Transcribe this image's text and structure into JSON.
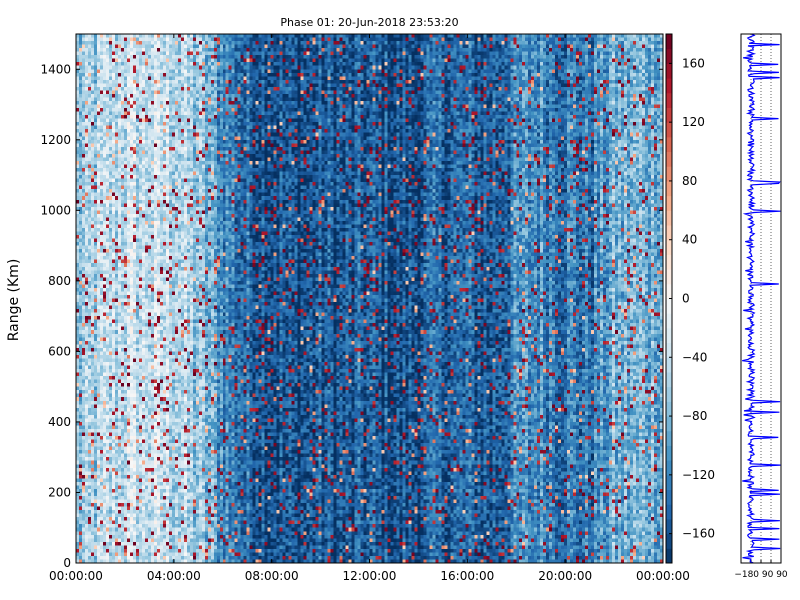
{
  "chart_data": {
    "type": "heatmap",
    "title": "Phase 01: 20-Jun-2018 23:53:20",
    "ylabel": "Range (Km)",
    "xlabel": "",
    "x_tick_labels": [
      "00:00:00",
      "04:00:00",
      "08:00:00",
      "12:00:00",
      "16:00:00",
      "20:00:00",
      "00:00:00"
    ],
    "x_range_hours": [
      0,
      24
    ],
    "y_ticks": [
      0,
      200,
      400,
      600,
      800,
      1000,
      1200,
      1400
    ],
    "ylim": [
      0,
      1500
    ],
    "colorbar": {
      "label": "",
      "range": [
        -180,
        180
      ],
      "ticks": [
        -160,
        -120,
        -80,
        -40,
        0,
        40,
        80,
        120,
        160
      ],
      "colormap": "RdBu_r",
      "colors": [
        "#053061",
        "#2166ac",
        "#4393c3",
        "#92c5de",
        "#d1e5f0",
        "#f7f7f7",
        "#fddbc7",
        "#f4a582",
        "#d6604d",
        "#b2182b",
        "#67001f"
      ]
    },
    "time_profile_mean_phase": [
      {
        "hour": 0,
        "mean": -75
      },
      {
        "hour": 2,
        "mean": -40
      },
      {
        "hour": 4,
        "mean": -45
      },
      {
        "hour": 5,
        "mean": -70
      },
      {
        "hour": 6,
        "mean": -110
      },
      {
        "hour": 7,
        "mean": -140
      },
      {
        "hour": 8,
        "mean": -150
      },
      {
        "hour": 9,
        "mean": -160
      },
      {
        "hour": 10,
        "mean": -150
      },
      {
        "hour": 11,
        "mean": -155
      },
      {
        "hour": 12,
        "mean": -150
      },
      {
        "hour": 13,
        "mean": -160
      },
      {
        "hour": 14,
        "mean": -155
      },
      {
        "hour": 15,
        "mean": -140
      },
      {
        "hour": 16,
        "mean": -145
      },
      {
        "hour": 17,
        "mean": -150
      },
      {
        "hour": 18,
        "mean": -120
      },
      {
        "hour": 19,
        "mean": -110
      },
      {
        "hour": 20,
        "mean": -125
      },
      {
        "hour": 21,
        "mean": -130
      },
      {
        "hour": 22,
        "mean": -90
      },
      {
        "hour": 23,
        "mean": -85
      },
      {
        "hour": 24,
        "mean": -80
      }
    ],
    "side_panel": {
      "type": "line",
      "x_ticks": [
        -180,
        -90,
        0,
        90
      ],
      "x_tick_label_text": "−180 90 90",
      "xlim": [
        -180,
        180
      ],
      "ylim": [
        0,
        1500
      ]
    }
  }
}
